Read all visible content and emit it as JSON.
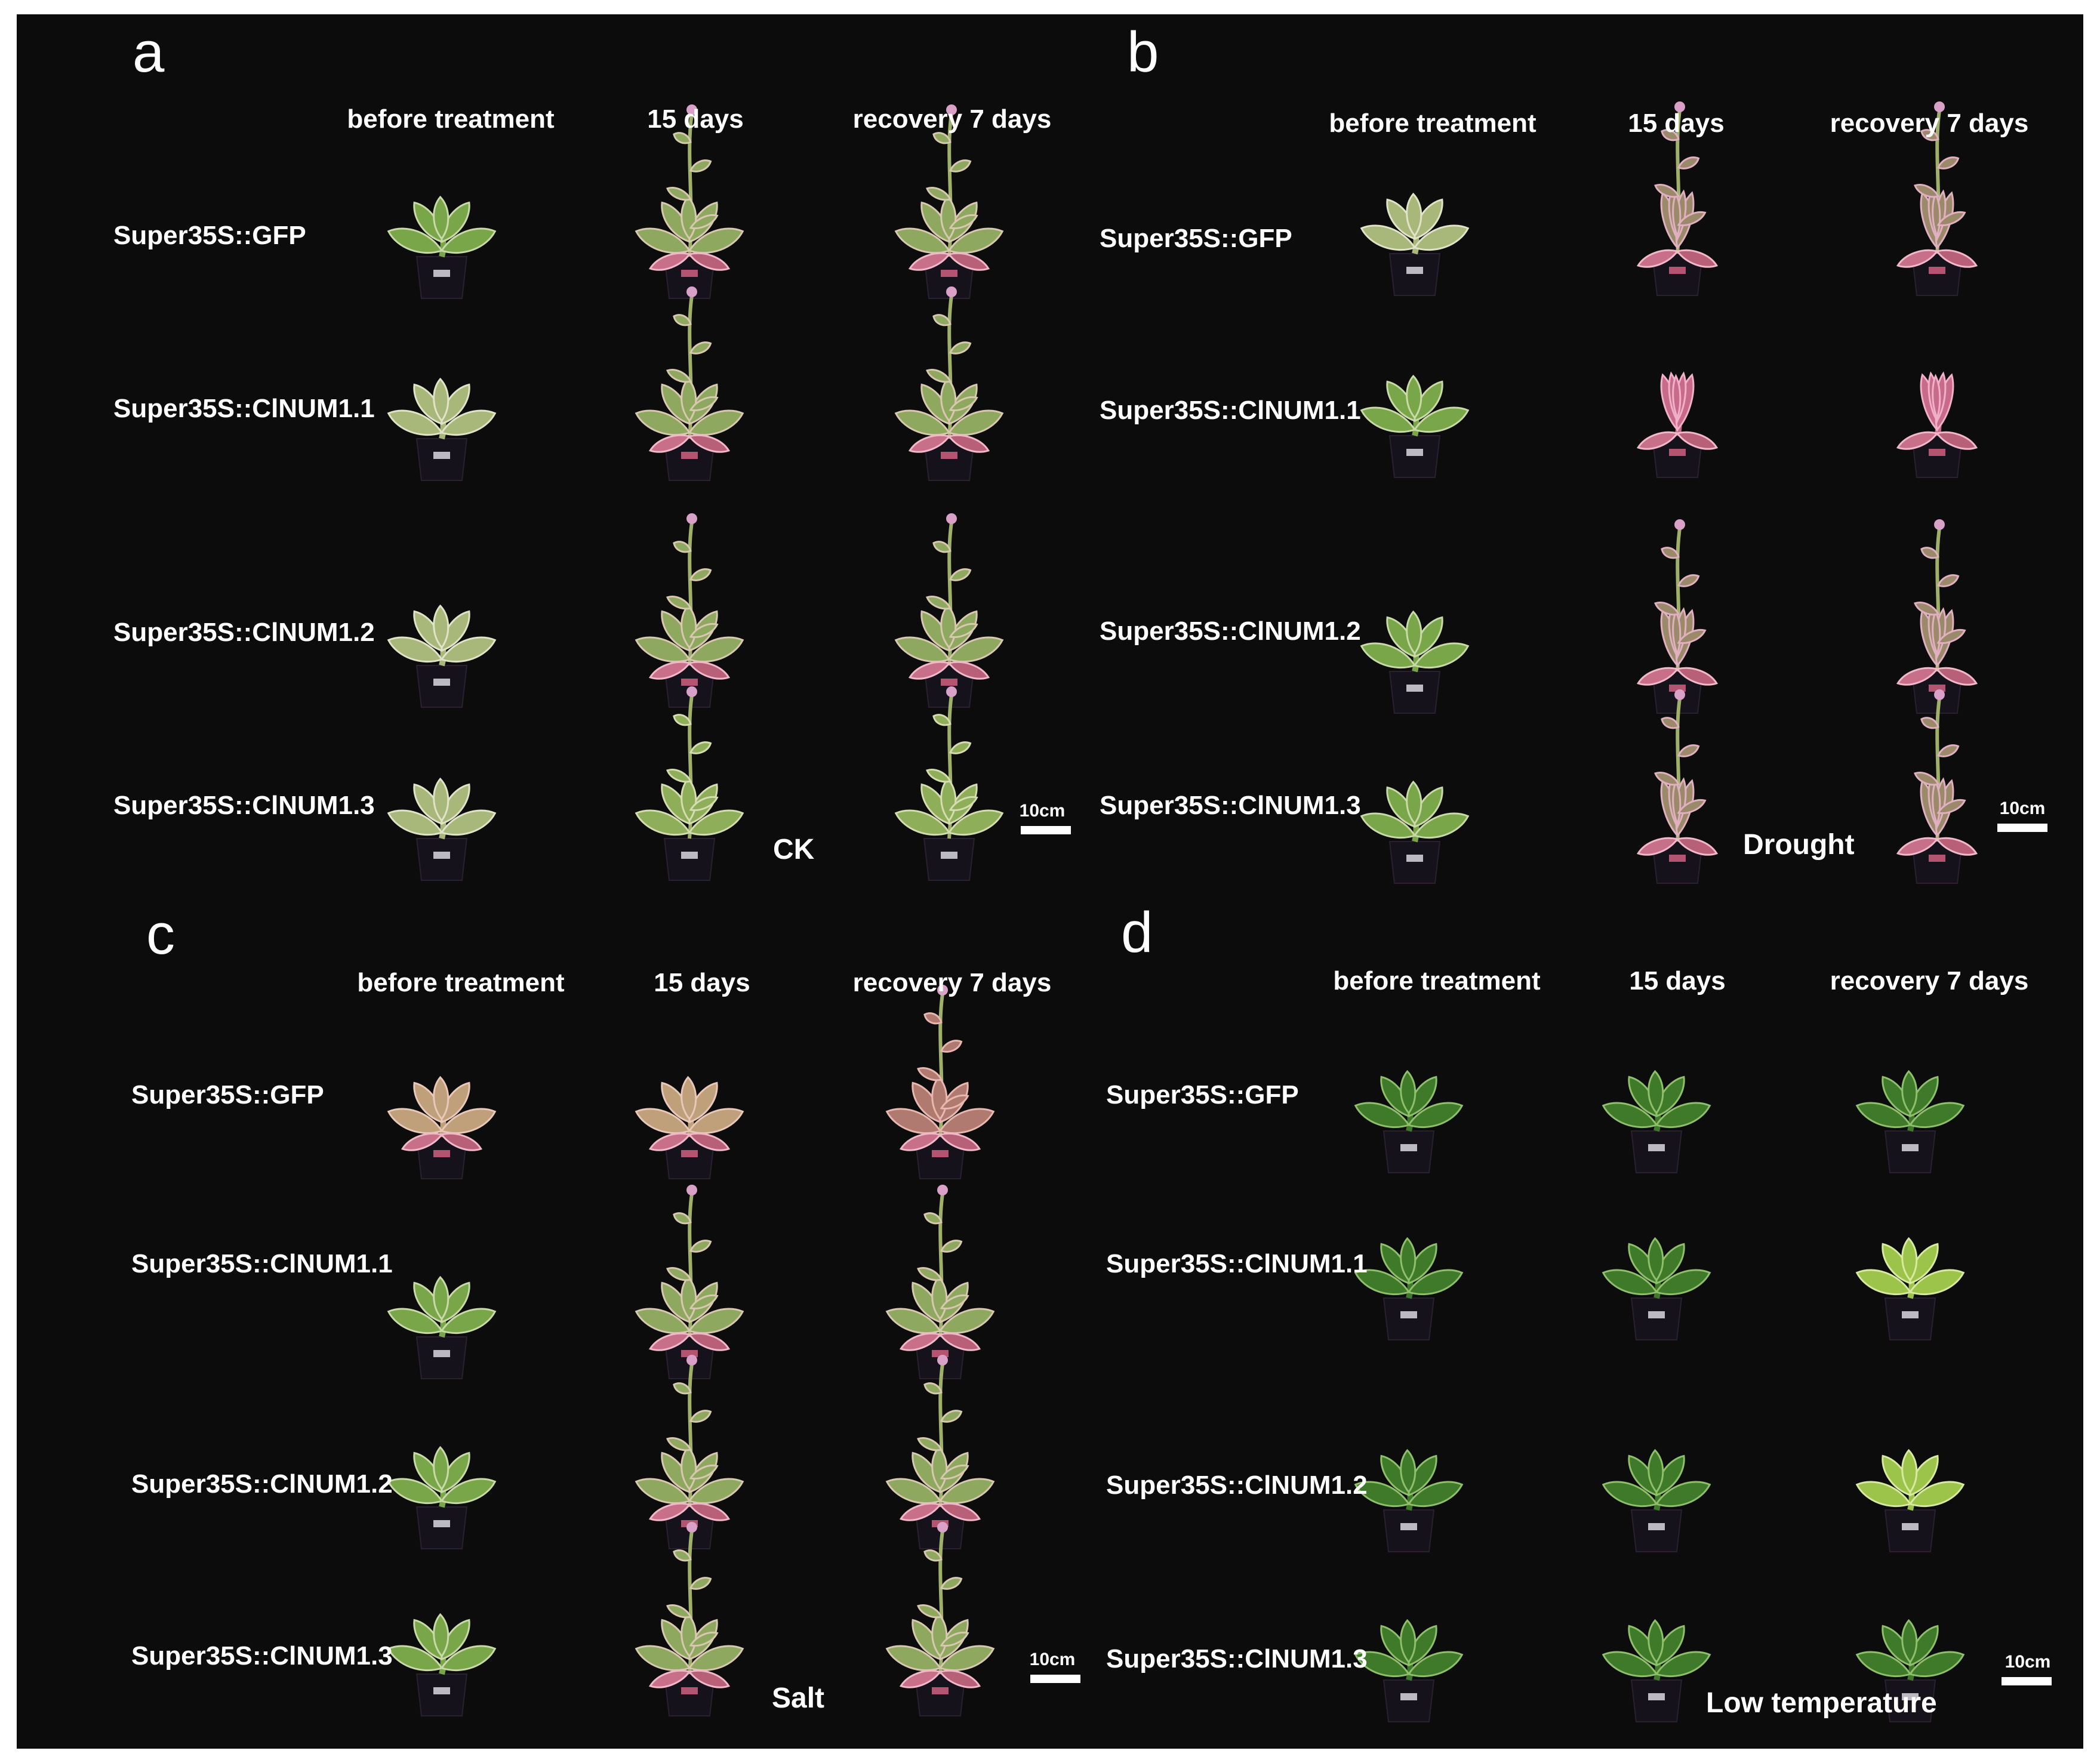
{
  "column_headers": [
    "before treatment",
    "15 days",
    "recovery 7 days"
  ],
  "row_labels": [
    "Super35S::GFP",
    "Super35S::ClNUM1.1",
    "Super35S::ClNUM1.2",
    "Super35S::ClNUM1.3"
  ],
  "scale_label": "10cm",
  "panels": [
    {
      "letter": "a",
      "condition": "CK"
    },
    {
      "letter": "b",
      "condition": "Drought"
    },
    {
      "letter": "c",
      "condition": "Salt"
    },
    {
      "letter": "d",
      "condition": "Low temperature"
    }
  ],
  "colors": {
    "background": "#0c0c0c",
    "text": "#ffffff",
    "healthy_leaf": "#6f9e3f",
    "stressed_leaf": "#c88a86",
    "pot": "#16121c"
  }
}
